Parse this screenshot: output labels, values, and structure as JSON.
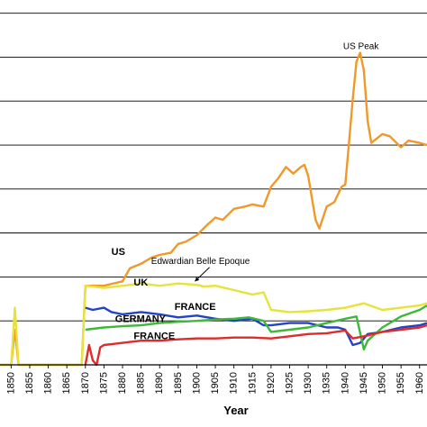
{
  "chart_data": {
    "type": "line",
    "xlabel": "Year",
    "x_ticks": [
      1850,
      1855,
      1860,
      1865,
      1870,
      1875,
      1880,
      1885,
      1890,
      1895,
      1900,
      1905,
      1910,
      1915,
      1920,
      1925,
      1930,
      1935,
      1940,
      1945,
      1950,
      1955,
      1960
    ],
    "xlim": [
      1847,
      1962
    ],
    "ylim": [
      0,
      8.3
    ],
    "grid_lines": [
      1,
      2,
      3,
      4,
      5,
      6,
      7,
      8
    ],
    "series": [
      {
        "name": "US",
        "color": "#f0982a",
        "points": [
          [
            1847,
            0
          ],
          [
            1850,
            0
          ],
          [
            1851,
            0.8
          ],
          [
            1852,
            0
          ],
          [
            1869,
            0
          ],
          [
            1870,
            1.8
          ],
          [
            1875,
            1.8
          ],
          [
            1880,
            1.9
          ],
          [
            1881,
            2.05
          ],
          [
            1882,
            2.2
          ],
          [
            1885,
            2.3
          ],
          [
            1888,
            2.45
          ],
          [
            1890,
            2.5
          ],
          [
            1893,
            2.55
          ],
          [
            1895,
            2.75
          ],
          [
            1897,
            2.8
          ],
          [
            1900,
            2.95
          ],
          [
            1903,
            3.2
          ],
          [
            1905,
            3.35
          ],
          [
            1907,
            3.3
          ],
          [
            1910,
            3.55
          ],
          [
            1913,
            3.6
          ],
          [
            1915,
            3.65
          ],
          [
            1918,
            3.6
          ],
          [
            1920,
            4.05
          ],
          [
            1922,
            4.25
          ],
          [
            1924,
            4.5
          ],
          [
            1926,
            4.35
          ],
          [
            1928,
            4.5
          ],
          [
            1929,
            4.55
          ],
          [
            1930,
            4.3
          ],
          [
            1931,
            3.8
          ],
          [
            1932,
            3.3
          ],
          [
            1933,
            3.1
          ],
          [
            1935,
            3.6
          ],
          [
            1937,
            3.7
          ],
          [
            1939,
            4.05
          ],
          [
            1940,
            4.1
          ],
          [
            1941,
            5.05
          ],
          [
            1942,
            6.05
          ],
          [
            1943,
            6.9
          ],
          [
            1944,
            7.1
          ],
          [
            1945,
            6.7
          ],
          [
            1946,
            5.55
          ],
          [
            1947,
            5.05
          ],
          [
            1950,
            5.25
          ],
          [
            1952,
            5.2
          ],
          [
            1955,
            4.95
          ],
          [
            1957,
            5.1
          ],
          [
            1960,
            5.05
          ],
          [
            1962,
            5.0
          ]
        ]
      },
      {
        "name": "UK",
        "color": "#e6e33a",
        "points": [
          [
            1847,
            0
          ],
          [
            1850,
            0
          ],
          [
            1851,
            1.3
          ],
          [
            1852,
            0
          ],
          [
            1869,
            0
          ],
          [
            1870,
            1.8
          ],
          [
            1875,
            1.75
          ],
          [
            1880,
            1.8
          ],
          [
            1885,
            1.85
          ],
          [
            1890,
            1.8
          ],
          [
            1895,
            1.85
          ],
          [
            1900,
            1.82
          ],
          [
            1902,
            1.78
          ],
          [
            1905,
            1.8
          ],
          [
            1910,
            1.7
          ],
          [
            1915,
            1.6
          ],
          [
            1918,
            1.65
          ],
          [
            1920,
            1.25
          ],
          [
            1925,
            1.2
          ],
          [
            1930,
            1.22
          ],
          [
            1935,
            1.25
          ],
          [
            1940,
            1.3
          ],
          [
            1945,
            1.4
          ],
          [
            1950,
            1.25
          ],
          [
            1955,
            1.3
          ],
          [
            1960,
            1.35
          ],
          [
            1962,
            1.4
          ]
        ]
      },
      {
        "name": "FRANCE",
        "color": "#2243c8",
        "points": [
          [
            1870,
            1.3
          ],
          [
            1872,
            1.25
          ],
          [
            1875,
            1.3
          ],
          [
            1877,
            1.2
          ],
          [
            1880,
            1.15
          ],
          [
            1885,
            1.2
          ],
          [
            1890,
            1.15
          ],
          [
            1895,
            1.08
          ],
          [
            1900,
            1.12
          ],
          [
            1905,
            1.05
          ],
          [
            1910,
            1.0
          ],
          [
            1915,
            1.05
          ],
          [
            1918,
            0.9
          ],
          [
            1920,
            0.9
          ],
          [
            1925,
            0.95
          ],
          [
            1930,
            0.95
          ],
          [
            1935,
            0.85
          ],
          [
            1938,
            0.85
          ],
          [
            1940,
            0.8
          ],
          [
            1942,
            0.45
          ],
          [
            1944,
            0.5
          ],
          [
            1946,
            0.7
          ],
          [
            1950,
            0.75
          ],
          [
            1955,
            0.85
          ],
          [
            1960,
            0.9
          ],
          [
            1962,
            0.95
          ]
        ]
      },
      {
        "name": "GERMANY",
        "color": "#3fb83a",
        "points": [
          [
            1870,
            0.8
          ],
          [
            1875,
            0.85
          ],
          [
            1880,
            0.88
          ],
          [
            1885,
            0.9
          ],
          [
            1890,
            0.95
          ],
          [
            1895,
            0.98
          ],
          [
            1900,
            1.0
          ],
          [
            1905,
            1.03
          ],
          [
            1910,
            1.05
          ],
          [
            1914,
            1.08
          ],
          [
            1918,
            1.0
          ],
          [
            1920,
            0.75
          ],
          [
            1925,
            0.8
          ],
          [
            1930,
            0.85
          ],
          [
            1935,
            0.95
          ],
          [
            1940,
            1.05
          ],
          [
            1943,
            1.1
          ],
          [
            1945,
            0.35
          ],
          [
            1946,
            0.55
          ],
          [
            1950,
            0.85
          ],
          [
            1955,
            1.1
          ],
          [
            1960,
            1.25
          ],
          [
            1962,
            1.35
          ]
        ]
      },
      {
        "name": "FRANCE",
        "color": "#e02b2b",
        "points": [
          [
            1870,
            0
          ],
          [
            1871,
            0.45
          ],
          [
            1872,
            0.1
          ],
          [
            1873,
            0
          ],
          [
            1874,
            0.4
          ],
          [
            1875,
            0.45
          ],
          [
            1880,
            0.5
          ],
          [
            1885,
            0.55
          ],
          [
            1890,
            0.55
          ],
          [
            1895,
            0.58
          ],
          [
            1900,
            0.6
          ],
          [
            1905,
            0.6
          ],
          [
            1910,
            0.62
          ],
          [
            1915,
            0.62
          ],
          [
            1920,
            0.6
          ],
          [
            1925,
            0.65
          ],
          [
            1930,
            0.7
          ],
          [
            1935,
            0.72
          ],
          [
            1940,
            0.78
          ],
          [
            1942,
            0.6
          ],
          [
            1945,
            0.65
          ],
          [
            1950,
            0.75
          ],
          [
            1955,
            0.8
          ],
          [
            1960,
            0.85
          ],
          [
            1962,
            0.9
          ]
        ]
      }
    ],
    "labels": [
      {
        "id": "us",
        "text": "US",
        "x": 1877,
        "y": 2.5,
        "color": "#000"
      },
      {
        "id": "uk",
        "text": "UK",
        "x": 1883,
        "y": 1.8,
        "color": "#000"
      },
      {
        "id": "france_blue",
        "text": "FRANCE",
        "x": 1894,
        "y": 1.25,
        "color": "#000"
      },
      {
        "id": "germany",
        "text": "GERMANY",
        "x": 1878,
        "y": 0.97,
        "color": "#000"
      },
      {
        "id": "france_red",
        "text": "FRANCE",
        "x": 1883,
        "y": 0.58,
        "color": "#000"
      }
    ],
    "annotations": [
      {
        "id": "us_peak",
        "text": "US Peak",
        "x": 1944.2,
        "y": 7.18
      },
      {
        "id": "belle_epoque",
        "text": "Edwardian Belle Epoque",
        "x": 1901,
        "y": 2.3,
        "arrow_to": [
          1899.5,
          1.9
        ]
      }
    ]
  }
}
